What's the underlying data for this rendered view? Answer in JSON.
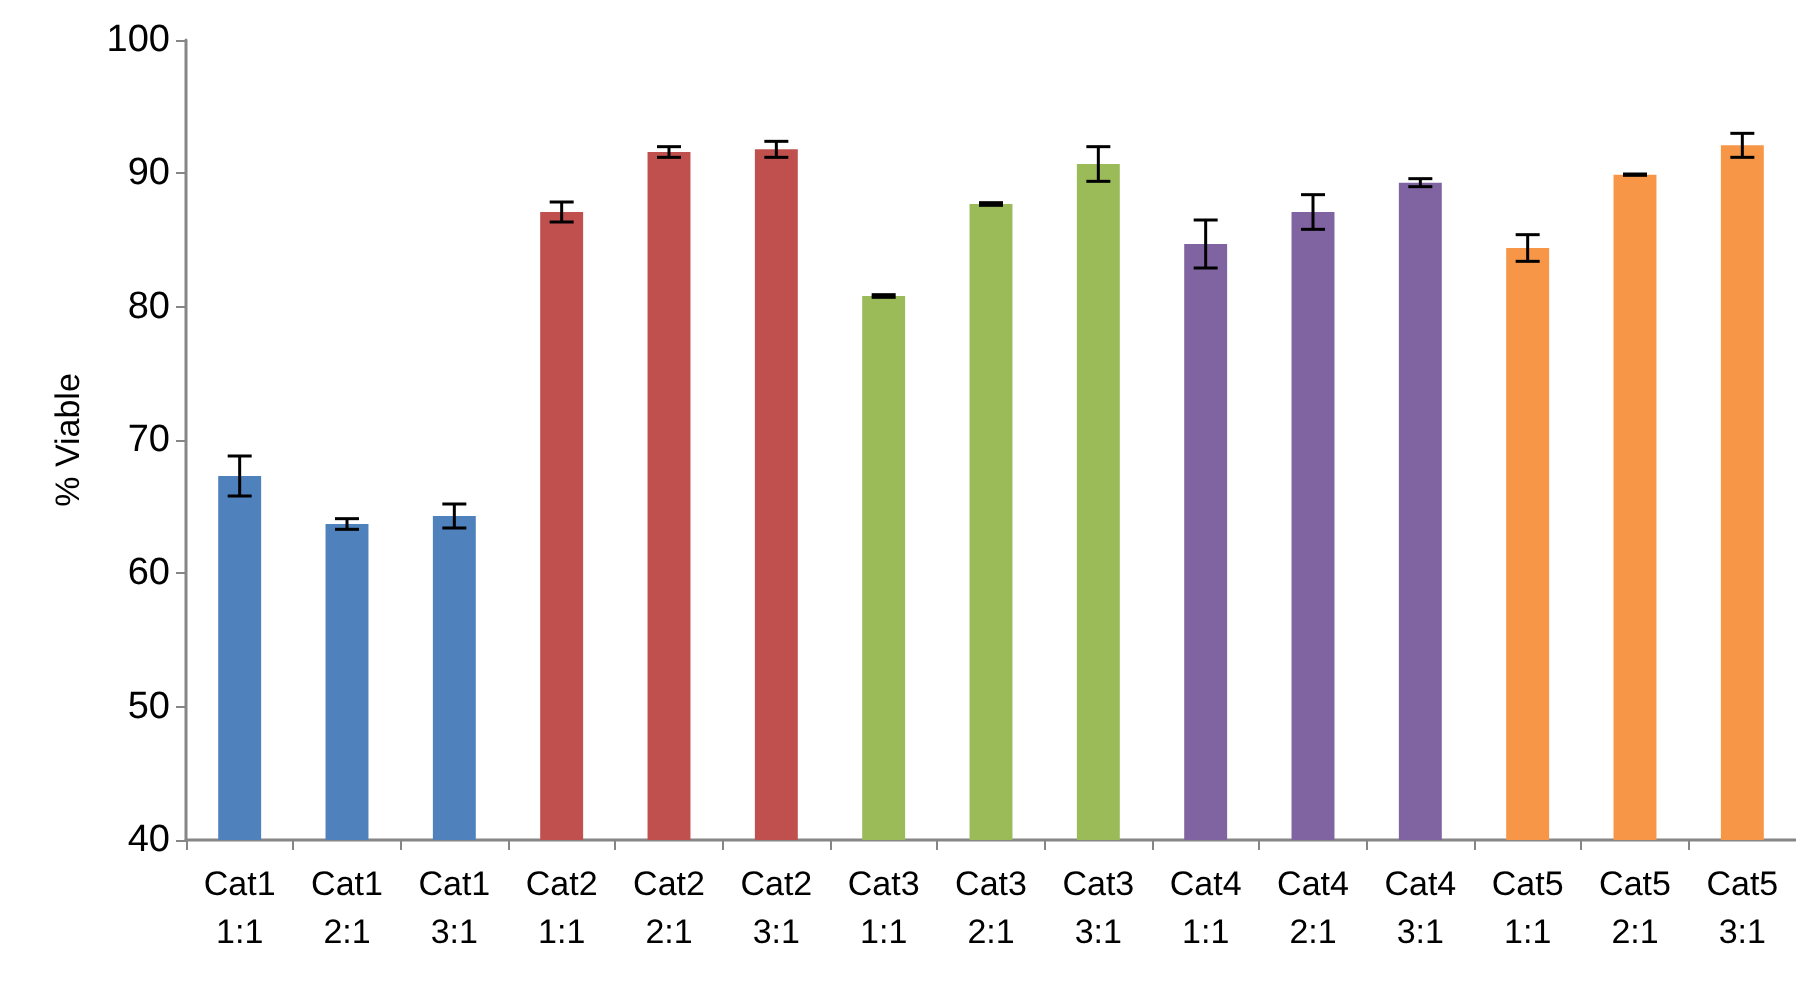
{
  "chart_data": {
    "type": "bar",
    "ylabel": "% Viable",
    "categories": [
      "Cat1\n1:1",
      "Cat1\n2:1",
      "Cat1\n3:1",
      "Cat2\n1:1",
      "Cat2\n2:1",
      "Cat2\n3:1",
      "Cat3\n1:1",
      "Cat3\n2:1",
      "Cat3\n3:1",
      "Cat4\n1:1",
      "Cat4\n2:1",
      "Cat4\n3:1",
      "Cat5\n1:1",
      "Cat5\n2:1",
      "Cat5\n3:1"
    ],
    "values": [
      67.3,
      63.7,
      64.3,
      87.1,
      91.6,
      91.8,
      80.8,
      87.7,
      90.7,
      84.7,
      87.1,
      89.3,
      84.4,
      89.9,
      92.1
    ],
    "errors": [
      1.5,
      0.4,
      0.9,
      0.75,
      0.4,
      0.6,
      0.1,
      0.1,
      1.3,
      1.8,
      1.3,
      0.3,
      1.0,
      0.05,
      0.9
    ],
    "colors": [
      "#4f81bd",
      "#4f81bd",
      "#4f81bd",
      "#c0504d",
      "#c0504d",
      "#c0504d",
      "#9bbb59",
      "#9bbb59",
      "#9bbb59",
      "#8064a2",
      "#8064a2",
      "#8064a2",
      "#f79646",
      "#f79646",
      "#f79646"
    ],
    "ylim": [
      40,
      100
    ],
    "yticks": [
      40,
      50,
      60,
      70,
      80,
      90,
      100
    ],
    "grid": false
  }
}
